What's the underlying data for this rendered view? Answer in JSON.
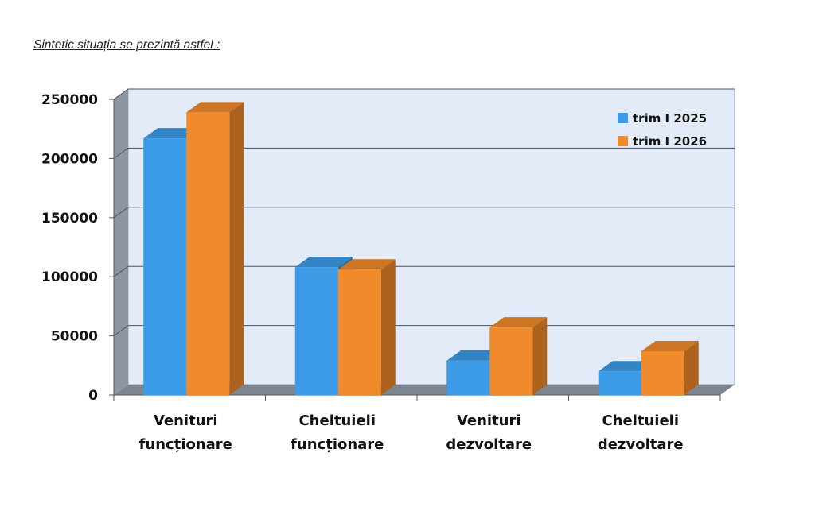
{
  "heading": "Sintetic situația se prezintă astfel :",
  "colors": {
    "series_1": "#3b9be6",
    "series_2": "#f08a2a",
    "plot_background": "#e2ebf7"
  },
  "chart_data": {
    "type": "bar",
    "categories": [
      [
        "Venituri",
        "funcționare"
      ],
      [
        "Cheltuieli",
        "funcționare"
      ],
      [
        "Venituri",
        "dezvoltare"
      ],
      [
        "Cheltuieli",
        "dezvoltare"
      ]
    ],
    "series": [
      {
        "name": "trim I 2025",
        "values": [
          217000,
          108000,
          29000,
          20000
        ]
      },
      {
        "name": "trim I 2026",
        "values": [
          239000,
          106000,
          57000,
          37000
        ]
      }
    ],
    "ylim": [
      0,
      250000
    ],
    "yticks": [
      "0",
      "50000",
      "100000",
      "150000",
      "200000",
      "250000"
    ],
    "grid": true,
    "legend_position": "top-right",
    "style": "3d-column"
  }
}
